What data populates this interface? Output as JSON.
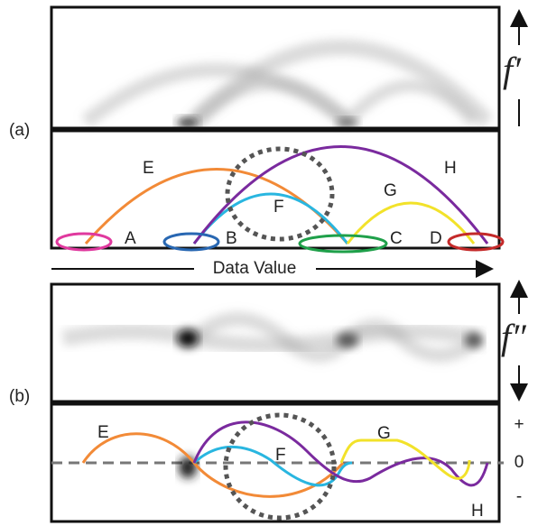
{
  "panel_a": {
    "label": "(a)",
    "axis_label": "f′",
    "points": [
      "A",
      "B",
      "C",
      "D"
    ],
    "arcs": [
      "E",
      "F",
      "G",
      "H"
    ],
    "x_axis_label": "Data Value"
  },
  "panel_b": {
    "label": "(b)",
    "axis_label": "f″",
    "arcs": [
      "E",
      "F",
      "G",
      "H"
    ],
    "signs": [
      "+",
      "0",
      "-"
    ]
  }
}
